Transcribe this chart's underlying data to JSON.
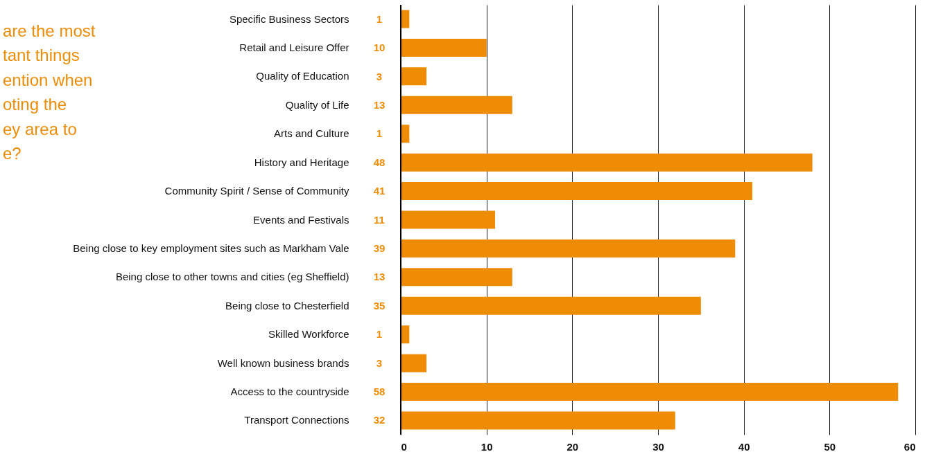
{
  "chart_data": {
    "type": "bar",
    "orientation": "horizontal",
    "title": "are the most\ntant things\nention when\noting the\ney area to\ne?",
    "categories": [
      "Specific Business Sectors",
      "Retail and Leisure Offer",
      "Quality of Education",
      "Quality of Life",
      "Arts and Culture",
      "History and Heritage",
      "Community Spirit / Sense of Community",
      "Events and Festivals",
      "Being close to key employment sites such as Markham Vale",
      "Being close to other towns and cities (eg Sheffield)",
      "Being close to Chesterfield",
      "Skilled Workforce",
      "Well known business brands",
      "Access to the countryside",
      "Transport Connections"
    ],
    "values": [
      1,
      10,
      3,
      13,
      1,
      48,
      41,
      11,
      39,
      13,
      35,
      1,
      3,
      58,
      32
    ],
    "color": "#ee8c05",
    "xlim": [
      0,
      60
    ],
    "xticks": [
      0,
      10,
      20,
      30,
      40,
      50,
      60
    ],
    "grid": "x",
    "data_labels": true
  }
}
